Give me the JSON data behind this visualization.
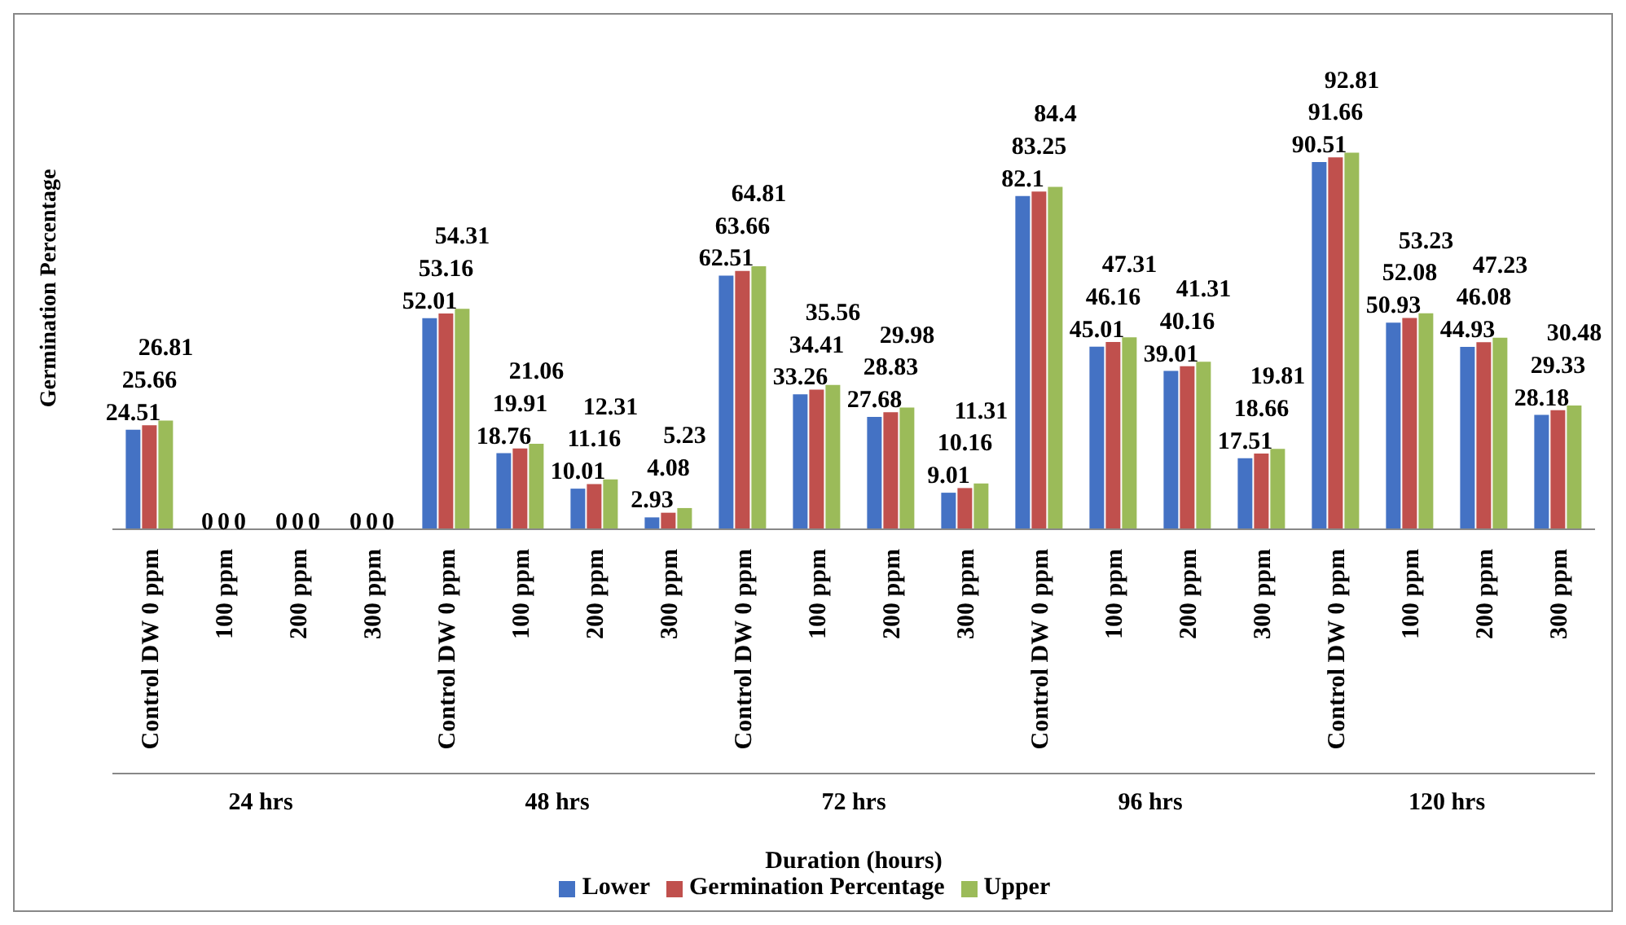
{
  "chart_data": {
    "type": "bar",
    "xlabel": "Duration (hours)",
    "ylabel": "Germination Percentage",
    "categories": [
      "Control DW 0 ppm",
      "100 ppm",
      "200 ppm",
      "300 ppm",
      "Control DW 0 ppm",
      "100 ppm",
      "200 ppm",
      "300 ppm",
      "Control DW 0 ppm",
      "100 ppm",
      "200 ppm",
      "300 ppm",
      "Control DW 0 ppm",
      "100 ppm",
      "200 ppm",
      "300 ppm",
      "Control DW 0 ppm",
      "100 ppm",
      "200 ppm",
      "300 ppm"
    ],
    "annotations": [
      "24 hrs",
      "48 hrs",
      "72 hrs",
      "96 hrs",
      "120 hrs"
    ],
    "series": [
      {
        "name": "Lower",
        "color": "#4472c4",
        "values": [
          24.51,
          0,
          0,
          0,
          52.01,
          18.76,
          10.01,
          2.93,
          62.51,
          33.26,
          27.68,
          9.01,
          82.1,
          45.01,
          39.01,
          17.51,
          90.51,
          50.93,
          44.93,
          28.18
        ]
      },
      {
        "name": "Germination Percentage",
        "color": "#c0504d",
        "values": [
          25.66,
          0,
          0,
          0,
          53.16,
          19.91,
          11.16,
          4.08,
          63.66,
          34.41,
          28.83,
          10.16,
          83.25,
          46.16,
          40.16,
          18.66,
          91.66,
          52.08,
          46.08,
          29.33
        ]
      },
      {
        "name": "Upper",
        "color": "#9bbb59",
        "values": [
          26.81,
          0,
          0,
          0,
          54.31,
          21.06,
          12.31,
          5.23,
          64.81,
          35.56,
          29.98,
          11.31,
          84.4,
          47.31,
          41.31,
          19.81,
          92.81,
          53.23,
          47.23,
          30.48
        ]
      }
    ],
    "data_labels": true,
    "legend": "bottom",
    "grid": false
  }
}
